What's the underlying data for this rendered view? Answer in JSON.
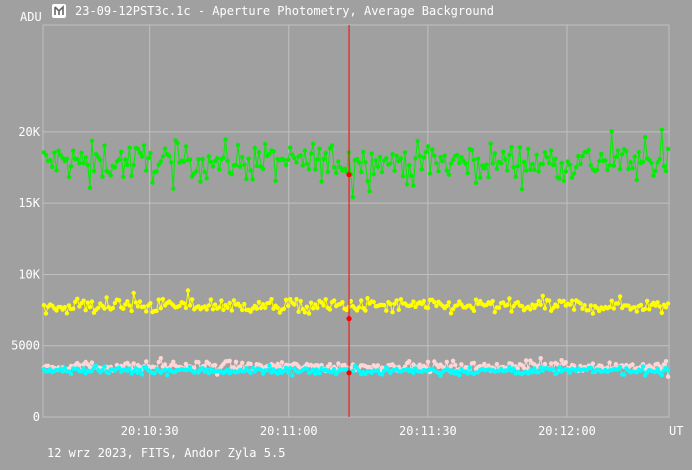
{
  "window": {
    "title": "23-09-12PST3c.1c - Aperture Photometry, Average Background"
  },
  "footer": {
    "text": "12 wrz 2023, FITS, Andor Zyla 5.5"
  },
  "chart_data": {
    "type": "line",
    "title": "23-09-12PST3c.1c - Aperture Photometry, Average Background",
    "ylabel": "ADU",
    "xlabel": "UT",
    "x_start": "20:10:07",
    "x_end": "20:12:22",
    "ylim": [
      0,
      27500
    ],
    "y_ticks": [
      {
        "value": 0,
        "label": "0"
      },
      {
        "value": 5000,
        "label": "5000"
      },
      {
        "value": 10000,
        "label": "10K"
      },
      {
        "value": 15000,
        "label": "15K"
      },
      {
        "value": 20000,
        "label": "20K"
      }
    ],
    "x_ticks": [
      {
        "time": "20:10:30",
        "label": "20:10:30"
      },
      {
        "time": "20:11:00",
        "label": "20:11:00"
      },
      {
        "time": "20:11:30",
        "label": "20:11:30"
      },
      {
        "time": "20:12:00",
        "label": "20:12:00"
      }
    ],
    "grid": true,
    "cursor": {
      "time": "20:11:13",
      "markers": [
        17000,
        6900,
        3100
      ]
    },
    "series": [
      {
        "color": "#00ee00",
        "level": 17900,
        "jitter": 650,
        "points": 300
      },
      {
        "color": "#ffff00",
        "level": 7800,
        "jitter": 260,
        "points": 300
      },
      {
        "color": "#ffd6d6",
        "level": 3550,
        "jitter": 160,
        "points": 300
      },
      {
        "color": "#00ffff",
        "level": 3250,
        "jitter": 130,
        "points": 300
      }
    ],
    "colors": {
      "background": "#a0a0a0",
      "grid": "#c0c0c0",
      "cursor": "#ff0000"
    }
  }
}
